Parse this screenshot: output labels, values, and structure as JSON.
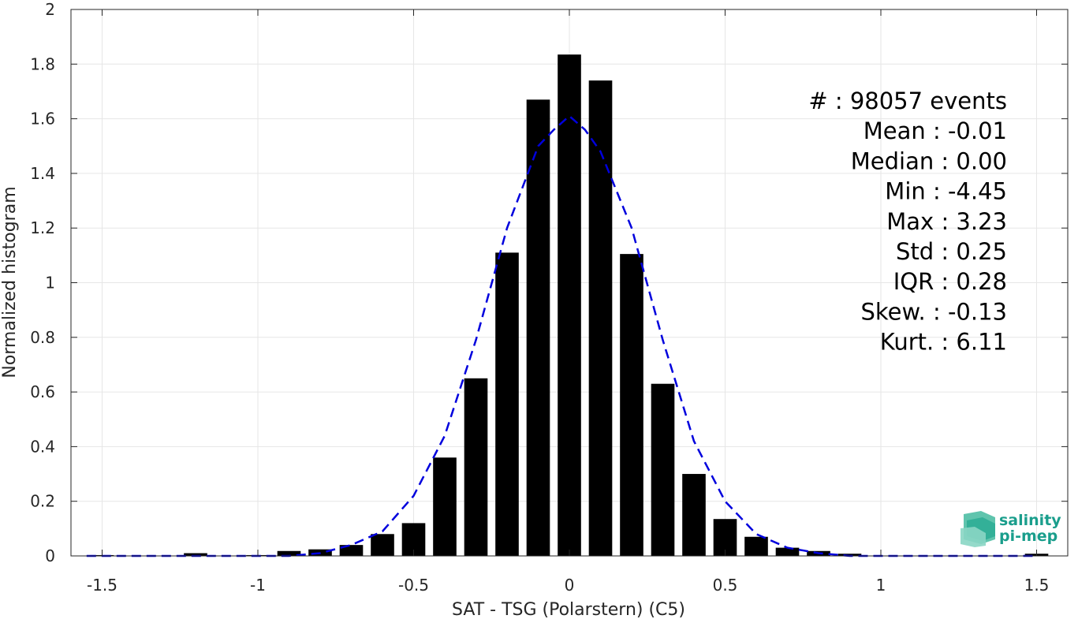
{
  "chart_data": {
    "type": "bar",
    "xlabel": "SAT - TSG (Polarstern) (C5)",
    "ylabel": "Normalized histogram",
    "xlim": [
      -1.6,
      1.6
    ],
    "ylim": [
      0,
      2
    ],
    "x_ticks": [
      -1.5,
      -1,
      -0.5,
      0,
      0.5,
      1,
      1.5
    ],
    "x_tick_labels": [
      "-1.5",
      "-1",
      "-0.5",
      "0",
      "0.5",
      "1",
      "1.5"
    ],
    "y_ticks": [
      0,
      0.2,
      0.4,
      0.6,
      0.8,
      1,
      1.2,
      1.4,
      1.6,
      1.8,
      2
    ],
    "y_tick_labels": [
      "0",
      "0.2",
      "0.4",
      "0.6",
      "0.8",
      "1",
      "1.2",
      "1.4",
      "1.6",
      "1.8",
      "2"
    ],
    "grid": true,
    "bar_width": 0.075,
    "bars": {
      "x": [
        -1.5,
        -1.2,
        -1.0,
        -0.9,
        -0.8,
        -0.7,
        -0.6,
        -0.5,
        -0.4,
        -0.3,
        -0.2,
        -0.1,
        0.0,
        0.1,
        0.2,
        0.3,
        0.4,
        0.5,
        0.6,
        0.7,
        0.8,
        0.9,
        1.5
      ],
      "values": [
        0.003,
        0.01,
        0.003,
        0.018,
        0.024,
        0.04,
        0.08,
        0.12,
        0.36,
        0.65,
        1.11,
        1.67,
        1.835,
        1.74,
        1.105,
        0.63,
        0.3,
        0.135,
        0.07,
        0.03,
        0.018,
        0.008,
        0.008
      ],
      "color": "#000000"
    },
    "fit_curve": {
      "style": "dashed",
      "color": "#0000dd",
      "x": [
        -1.55,
        -1.4,
        -1.3,
        -1.2,
        -1.1,
        -1.0,
        -0.9,
        -0.8,
        -0.7,
        -0.6,
        -0.5,
        -0.4,
        -0.3,
        -0.2,
        -0.1,
        -0.05,
        0.0,
        0.05,
        0.1,
        0.2,
        0.3,
        0.4,
        0.5,
        0.6,
        0.7,
        0.8,
        0.9,
        1.0,
        1.1,
        1.2,
        1.3,
        1.4,
        1.5
      ],
      "y": [
        0.0,
        0.0,
        0.0,
        0.0,
        0.0,
        0.0,
        0.0,
        0.01,
        0.04,
        0.09,
        0.22,
        0.44,
        0.79,
        1.2,
        1.5,
        1.56,
        1.61,
        1.56,
        1.48,
        1.2,
        0.79,
        0.42,
        0.2,
        0.08,
        0.03,
        0.01,
        0.0,
        0.0,
        0.0,
        0.0,
        0.0,
        0.0,
        0.0
      ]
    },
    "annotations": [
      "#  : 98057 events",
      "Mean : -0.01",
      "Median : 0.00",
      "Min : -4.45",
      "Max : 3.23",
      "Std : 0.25",
      "IQR : 0.28",
      "Skew. : -0.13",
      "Kurt. : 6.11"
    ],
    "annotation_placement": "top-right"
  },
  "logo": {
    "line1": "salinity",
    "line2": "pi-mep",
    "color": "#1a9e8c"
  },
  "colors": {
    "axis": "#262626",
    "grid": "#e6e6e6"
  }
}
